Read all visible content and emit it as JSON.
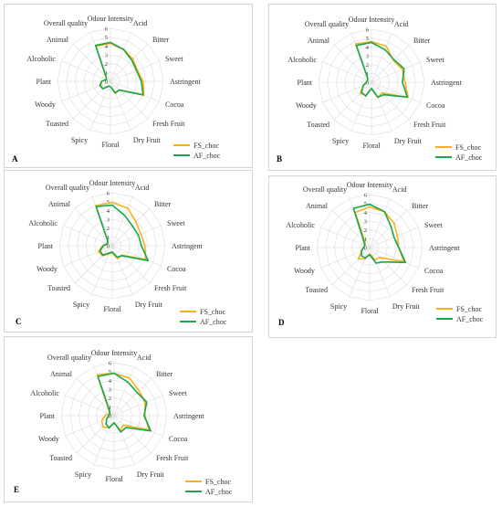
{
  "chart_data": [
    {
      "type": "radar",
      "panel": "A",
      "categories": [
        "Odour Intensity",
        "Acid",
        "Bitter",
        "Sweet",
        "Astringent",
        "Cocoa",
        "Fresh Fruit",
        "Dry Fruit",
        "Floral",
        "Spicy",
        "Toasted",
        "Woody",
        "Plant",
        "Alcoholic",
        "Animal",
        "Overall quality"
      ],
      "rlim": [
        0,
        6
      ],
      "ticks": [
        "0",
        "1",
        "2",
        "3",
        "4",
        "5",
        "6"
      ],
      "legend_position": "bottom-right",
      "grid": true,
      "series": [
        {
          "name": "FS_choc",
          "color": "#f5b21a",
          "values": [
            4.3,
            3.9,
            3.6,
            3.3,
            3.7,
            4.1,
            1.4,
            1.5,
            0.6,
            0.6,
            1.2,
            1.2,
            1.0,
            0.5,
            0.7,
            4.3
          ]
        },
        {
          "name": "AF_choc",
          "color": "#1aa64a",
          "values": [
            4.4,
            3.9,
            3.4,
            3.2,
            3.5,
            4.0,
            1.4,
            1.4,
            0.6,
            0.6,
            1.2,
            1.3,
            1.0,
            0.5,
            0.7,
            4.4
          ]
        }
      ]
    },
    {
      "type": "radar",
      "panel": "B",
      "categories": [
        "Odour Intensity",
        "Acid",
        "Bitter",
        "Sweet",
        "Astringent",
        "Cocoa",
        "Fresh Fruit",
        "Dry Fruit",
        "Floral",
        "Spicy",
        "Toasted",
        "Woody",
        "Plant",
        "Alcoholic",
        "Animal",
        "Overall quality"
      ],
      "rlim": [
        0,
        6
      ],
      "ticks": [
        "0",
        "1",
        "2",
        "3",
        "4",
        "5",
        "6"
      ],
      "legend_position": "bottom-right",
      "grid": true,
      "series": [
        {
          "name": "FS_choc",
          "color": "#f5b21a",
          "values": [
            4.6,
            4.4,
            3.5,
            3.8,
            3.8,
            4.5,
            1.7,
            1.9,
            0.7,
            1.6,
            1.8,
            1.0,
            0.6,
            0.5,
            0.6,
            4.7
          ]
        },
        {
          "name": "AF_choc",
          "color": "#1aa64a",
          "values": [
            4.5,
            4.0,
            3.6,
            4.0,
            3.5,
            4.4,
            2.0,
            1.8,
            0.7,
            1.7,
            1.6,
            1.0,
            0.6,
            0.5,
            0.6,
            4.5
          ]
        }
      ]
    },
    {
      "type": "radar",
      "panel": "C",
      "categories": [
        "Odour Intensity",
        "Acid",
        "Bitter",
        "Sweet",
        "Astringent",
        "Cocoa",
        "Fresh Fruit",
        "Dry Fruit",
        "Floral",
        "Spicy",
        "Toasted",
        "Woody",
        "Plant",
        "Alcoholic",
        "Animal",
        "Overall quality"
      ],
      "rlim": [
        0,
        6
      ],
      "ticks": [
        "0",
        "1",
        "2",
        "3",
        "4",
        "5",
        "6"
      ],
      "legend_position": "bottom-right",
      "grid": true,
      "series": [
        {
          "name": "FS_choc",
          "color": "#f5b21a",
          "values": [
            4.9,
            4.6,
            3.8,
            3.5,
            3.7,
            4.1,
            1.5,
            1.6,
            0.8,
            1.0,
            1.6,
            1.7,
            1.1,
            0.6,
            0.7,
            4.9
          ]
        },
        {
          "name": "AF_choc",
          "color": "#1aa64a",
          "values": [
            4.6,
            3.7,
            3.2,
            3.2,
            3.3,
            4.4,
            1.6,
            1.4,
            0.7,
            0.9,
            1.5,
            1.5,
            1.0,
            0.6,
            0.7,
            4.8
          ]
        }
      ]
    },
    {
      "type": "radar",
      "panel": "D",
      "categories": [
        "Odour Intensity",
        "Acid",
        "Bitter",
        "Sweet",
        "Astringent",
        "Cocoa",
        "Fresh Fruit",
        "Dry Fruit",
        "Floral",
        "Spicy",
        "Toasted",
        "Woody",
        "Plant",
        "Alcoholic",
        "Animal",
        "Overall quality"
      ],
      "rlim": [
        0,
        6
      ],
      "ticks": [
        "0",
        "1",
        "2",
        "3",
        "4",
        "5",
        "6"
      ],
      "legend_position": "bottom-right",
      "grid": true,
      "series": [
        {
          "name": "FS_choc",
          "color": "#f5b21a",
          "values": [
            4.6,
            4.4,
            3.9,
            3.4,
            3.3,
            4.2,
            1.6,
            1.5,
            0.7,
            1.4,
            1.8,
            1.0,
            0.7,
            0.6,
            0.7,
            4.3
          ]
        },
        {
          "name": "AF_choc",
          "color": "#1aa64a",
          "values": [
            4.9,
            4.4,
            3.4,
            3.0,
            3.3,
            4.4,
            2.3,
            1.9,
            0.8,
            1.3,
            1.3,
            1.0,
            0.7,
            0.6,
            0.9,
            4.8
          ]
        }
      ]
    },
    {
      "type": "radar",
      "panel": "E",
      "categories": [
        "Odour Intensity",
        "Acid",
        "Bitter",
        "Sweet",
        "Astringent",
        "Cocoa",
        "Fresh Fruit",
        "Dry Fruit",
        "Floral",
        "Spicy",
        "Toasted",
        "Woody",
        "Plant",
        "Alcoholic",
        "Animal",
        "Overall quality"
      ],
      "rlim": [
        0,
        6
      ],
      "ticks": [
        "0",
        "1",
        "2",
        "3",
        "4",
        "5",
        "6"
      ],
      "legend_position": "bottom-right",
      "grid": true,
      "series": [
        {
          "name": "FS_choc",
          "color": "#f5b21a",
          "values": [
            4.8,
            4.6,
            4.0,
            3.8,
            3.5,
            4.3,
            1.5,
            1.8,
            0.8,
            1.5,
            1.8,
            1.5,
            1.0,
            0.6,
            0.8,
            5.0
          ]
        },
        {
          "name": "AF_choc",
          "color": "#1aa64a",
          "values": [
            4.8,
            4.1,
            3.7,
            4.0,
            3.4,
            4.5,
            1.9,
            2.0,
            0.8,
            1.5,
            1.3,
            0.9,
            0.6,
            0.5,
            0.7,
            4.8
          ]
        }
      ]
    }
  ]
}
